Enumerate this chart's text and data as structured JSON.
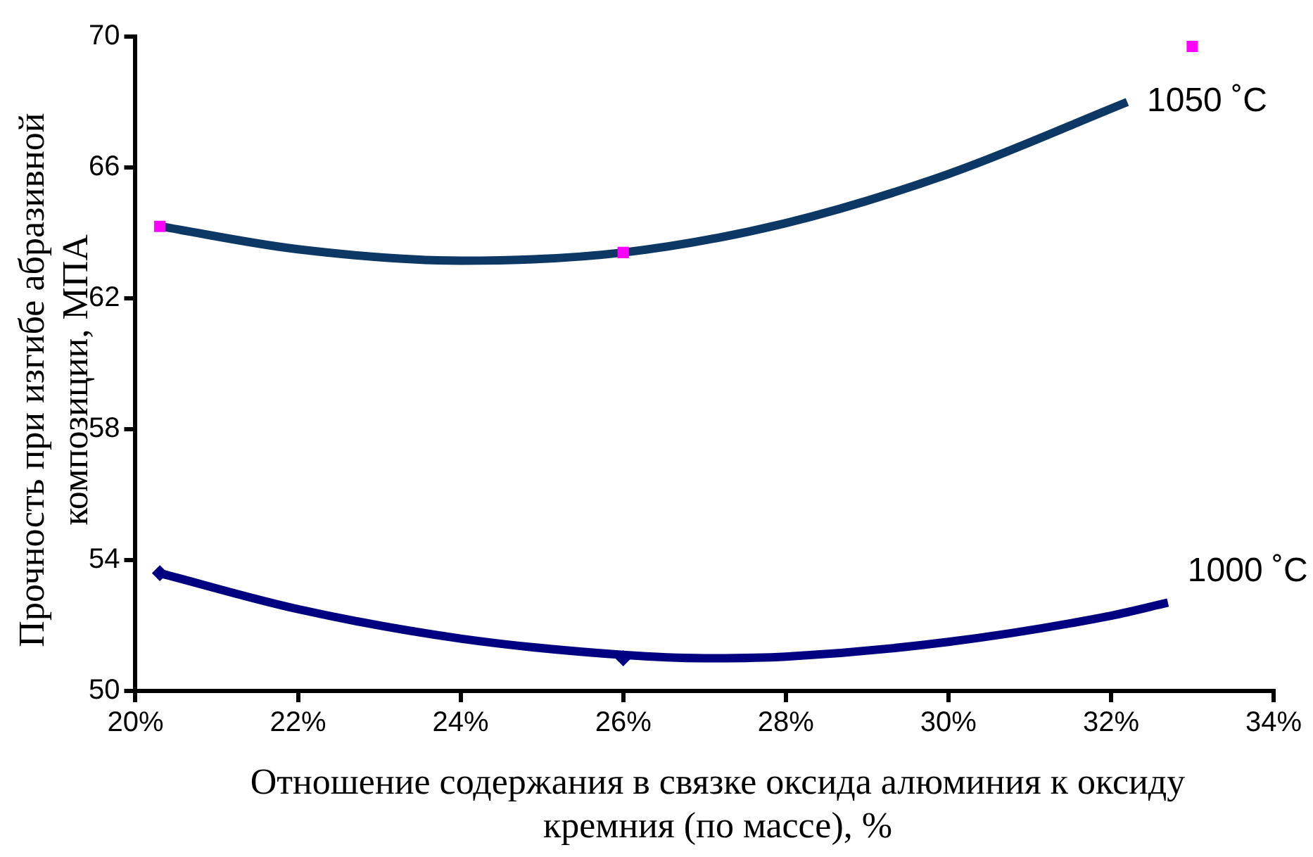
{
  "chart_data": {
    "type": "scatter",
    "xlabel": "Отношение содержания в связке оксида алюминия к оксиду кремния (по массе), %",
    "ylabel": "Прочность при  изгибе абразивной композиции, МПА",
    "xlim": [
      20,
      34
    ],
    "xticks": [
      {
        "value": 20,
        "label": "20%"
      },
      {
        "value": 22,
        "label": "22%"
      },
      {
        "value": 24,
        "label": "24%"
      },
      {
        "value": 26,
        "label": "26%"
      },
      {
        "value": 28,
        "label": "28%"
      },
      {
        "value": 30,
        "label": "30%"
      },
      {
        "value": 32,
        "label": "32%"
      },
      {
        "value": 34,
        "label": "34%"
      }
    ],
    "ylim": [
      50,
      70
    ],
    "yticks": [
      50,
      54,
      58,
      62,
      66,
      70
    ],
    "grid": false,
    "legend": false,
    "series": [
      {
        "type": "scatter",
        "marker": "square",
        "color": "#ff00ff",
        "x": [
          20.3,
          26,
          33
        ],
        "values": [
          64.2,
          63.4,
          69.7
        ]
      },
      {
        "type": "scatter",
        "marker": "diamond",
        "color": "#000080",
        "x": [
          20.3,
          26
        ],
        "values": [
          53.6,
          51.0
        ]
      },
      {
        "type": "line",
        "name": "1050 ˚C",
        "color": "#0d3866",
        "x": [
          20.3,
          22,
          24,
          26,
          28,
          30,
          32.2
        ],
        "values": [
          64.2,
          63.5,
          63.15,
          63.4,
          64.3,
          65.8,
          68.0
        ]
      },
      {
        "type": "line",
        "name": "1000 ˚C",
        "color": "#000080",
        "x": [
          20.3,
          22,
          24,
          26,
          27,
          28,
          30,
          32,
          32.7
        ],
        "values": [
          53.6,
          52.5,
          51.6,
          51.1,
          51.0,
          51.05,
          51.5,
          52.3,
          52.7
        ]
      }
    ]
  }
}
